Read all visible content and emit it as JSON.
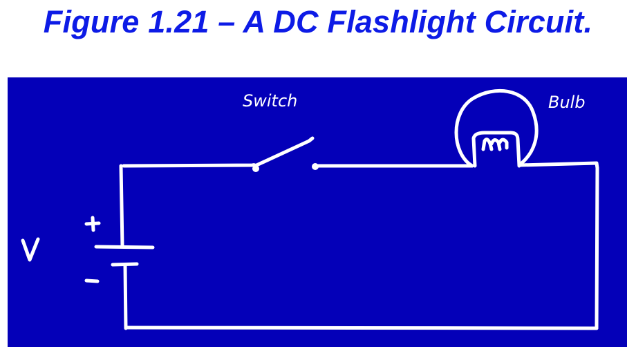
{
  "figure": {
    "title": "Figure 1.21 – A DC Flashlight Circuit."
  },
  "diagram": {
    "labels": {
      "switch": "Switch",
      "bulb": "Bulb",
      "voltage": "V",
      "plus": "+",
      "minus": "−"
    }
  },
  "colors": {
    "title": "#0d1be6",
    "board_background": "#0400b8",
    "chalk": "#ffffff"
  }
}
